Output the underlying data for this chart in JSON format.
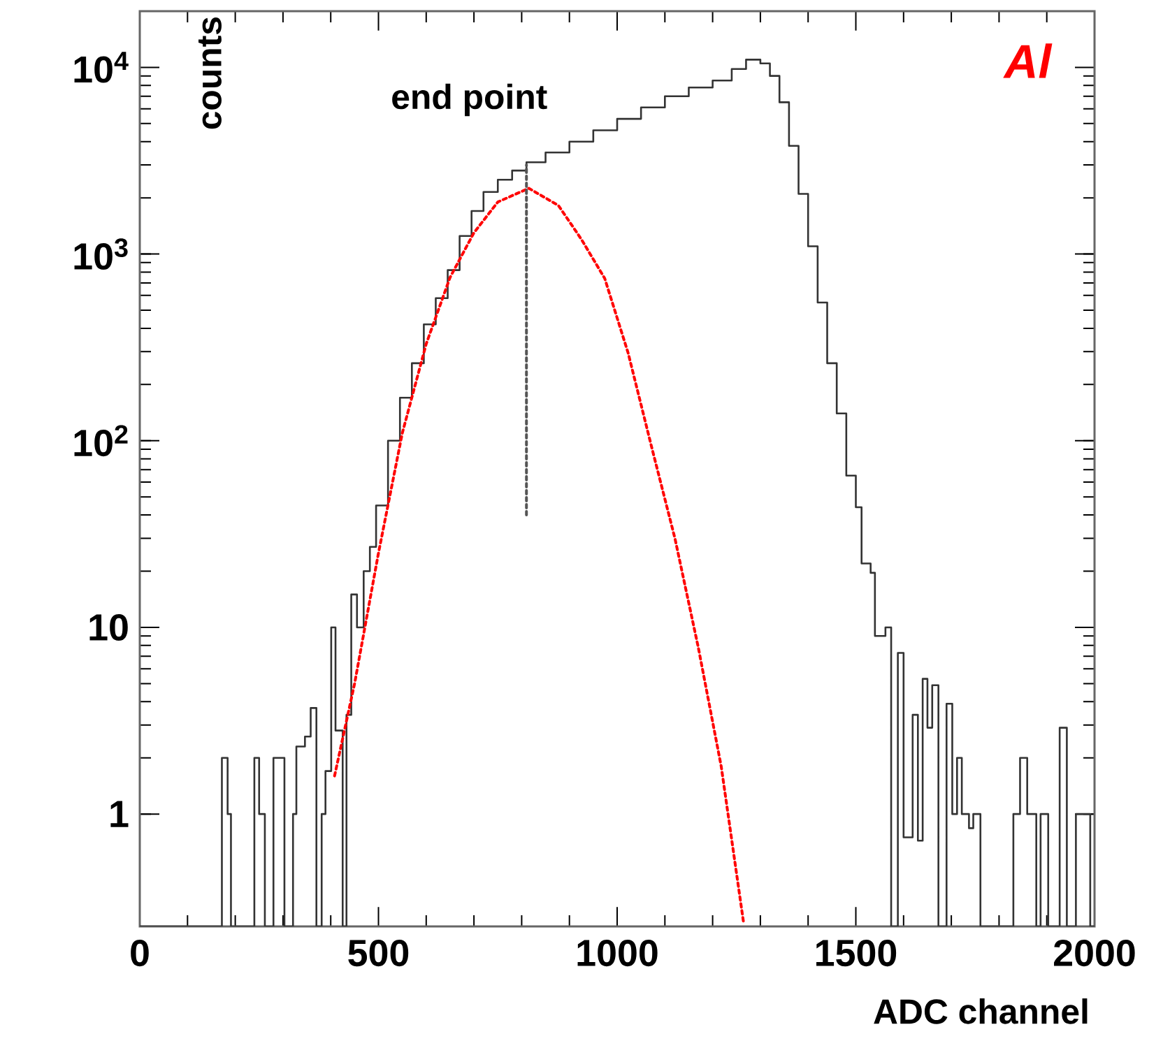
{
  "chart_data": {
    "type": "histogram",
    "xlabel": "ADC channel",
    "ylabel": "counts",
    "log": "y",
    "xlim": [
      0,
      2000
    ],
    "ylim": [
      0.25,
      20000
    ],
    "xticks": [
      0,
      500,
      1000,
      1500,
      2000
    ],
    "yticks": [
      1,
      10,
      {
        "value": 100,
        "label": "10$^{2}$"
      },
      {
        "value": 1000,
        "label": "10$^{3}$"
      },
      {
        "value": 10000,
        "label": "10$^{4}$"
      }
    ],
    "series": [
      {
        "color": "#333333",
        "bins": [
          0,
          172,
          184,
          191,
          240,
          250,
          262,
          280,
          303,
          321,
          328,
          346,
          358,
          370,
          381,
          389,
          401,
          410,
          425,
          433,
          443,
          455,
          469,
          482,
          495,
          520,
          545,
          570,
          595,
          620,
          645,
          670,
          695,
          720,
          750,
          780,
          810,
          850,
          900,
          950,
          1000,
          1050,
          1100,
          1150,
          1200,
          1240,
          1270,
          1300,
          1320,
          1340,
          1360,
          1380,
          1400,
          1420,
          1440,
          1460,
          1480,
          1500,
          1512,
          1531,
          1540,
          1562,
          1574,
          1588,
          1600,
          1619,
          1630,
          1640,
          1650,
          1660,
          1673,
          1690,
          1702,
          1712,
          1722,
          1737,
          1746,
          1761,
          1830,
          1844,
          1859,
          1878,
          1887,
          1903,
          1927,
          1942,
          1961,
          1991,
          2000
        ],
        "values": [
          null,
          2,
          1,
          null,
          2,
          1,
          null,
          2,
          null,
          1,
          2.3,
          2.6,
          3.7,
          null,
          1,
          1.7,
          10,
          2.8,
          null,
          3.4,
          15,
          10,
          20,
          27,
          45,
          100,
          170,
          260,
          420,
          580,
          820,
          1250,
          1700,
          2150,
          2500,
          2800,
          3100,
          3500,
          4000,
          4600,
          5300,
          6100,
          7000,
          7800,
          8500,
          9800,
          11000,
          10500,
          9000,
          6500,
          3800,
          2100,
          1100,
          550,
          260,
          140,
          65,
          44,
          22,
          19.6,
          9,
          10,
          null,
          7.3,
          0.75,
          3.4,
          0.72,
          5.3,
          2.9,
          4.9,
          null,
          3.9,
          1,
          2,
          1,
          0.84,
          1,
          null,
          1,
          2,
          1,
          null,
          1,
          null,
          2.9,
          null,
          1,
          null
        ]
      },
      {
        "type": "line",
        "color": "#ff0000",
        "line_style": "dotted",
        "x": [
          408,
          450,
          500,
          550,
          600,
          650,
          700,
          750,
          815,
          877,
          925,
          974,
          1023,
          1072,
          1121,
          1170,
          1218,
          1265
        ],
        "values": [
          1.6,
          5,
          25,
          110,
          330,
          750,
          1300,
          1900,
          2250,
          1820,
          1200,
          740,
          295,
          93,
          30,
          7.8,
          1.8,
          0.26
        ]
      },
      {
        "type": "line",
        "color": "#555555",
        "line_style": "dotted",
        "x": [
          810,
          810
        ],
        "values": [
          40,
          3000
        ]
      }
    ],
    "annotations": [
      "end point",
      "Al"
    ]
  }
}
